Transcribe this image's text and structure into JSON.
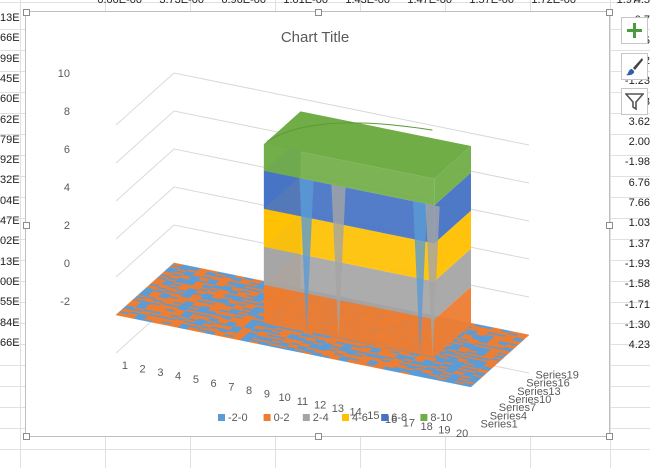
{
  "sheet": {
    "top_row": [
      "",
      "0.00E-00",
      "3.73E-00",
      "6.96E-00",
      "1.01E-00",
      "1.43E-00",
      "1.47E-00",
      "1.57E-00",
      "1.72E-00",
      "1.97"
    ],
    "left_column": [
      "13E",
      "66E",
      "99E",
      "45E",
      "60E",
      "62E",
      "79E",
      "92E",
      "32E",
      "04E",
      "47E",
      "02E",
      "13E",
      "00E",
      "55E",
      "84E",
      "66E"
    ],
    "right_column": [
      "4.5",
      "-0.7",
      "-1.5",
      "1.2",
      "-1.23",
      "-2.63",
      "3.62",
      "2.00",
      "-1.98",
      "6.76",
      "7.66",
      "1.03",
      "1.37",
      "-1.93",
      "-1.58",
      "-1.71",
      "-1.30",
      "4.23"
    ]
  },
  "chart_data": {
    "type": "surface",
    "title": "Chart Title",
    "x_categories": [
      "1",
      "2",
      "3",
      "4",
      "5",
      "6",
      "7",
      "8",
      "9",
      "10",
      "11",
      "12",
      "13",
      "14",
      "15",
      "16",
      "17",
      "18",
      "19",
      "20"
    ],
    "series_axis_labels": [
      "Series1",
      "Series4",
      "Series7",
      "Series10",
      "Series13",
      "Series16",
      "Series19"
    ],
    "z_ticks": [
      "-2",
      "0",
      "2",
      "4",
      "6",
      "8",
      "10"
    ],
    "zlim": [
      -2,
      10
    ],
    "legend_position": "bottom",
    "bands": [
      {
        "label": "-2-0",
        "color": "#5b9bd5"
      },
      {
        "label": "0-2",
        "color": "#ed7d31"
      },
      {
        "label": "2-4",
        "color": "#a5a5a5"
      },
      {
        "label": "4-6",
        "color": "#ffc000"
      },
      {
        "label": "6-8",
        "color": "#4472c4"
      },
      {
        "label": "8-10",
        "color": "#70ad47"
      }
    ],
    "surface_shape": "flat noisy floor around z=0 with a raised plateau near z=10 over x 7-17 and series 7-19"
  },
  "side_buttons": [
    {
      "icon": "plus-icon",
      "title": "Chart Elements"
    },
    {
      "icon": "brush-icon",
      "title": "Chart Styles"
    },
    {
      "icon": "funnel-icon",
      "title": "Chart Filters"
    }
  ]
}
